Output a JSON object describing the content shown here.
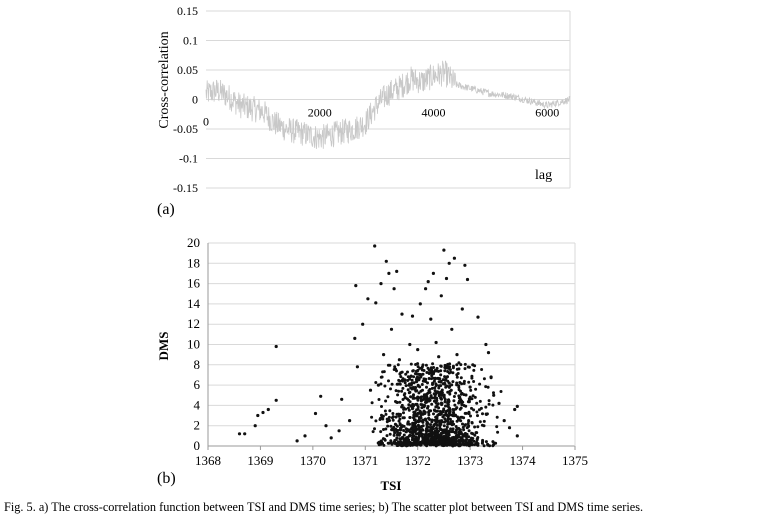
{
  "figure": {
    "caption": "Fig. 5. a) The cross-correlation function between TSI and DMS time series; b) The scatter plot between TSI and DMS time series."
  },
  "chart_data": [
    {
      "type": "line",
      "panel_label": "(a)",
      "title": "",
      "xlabel": "lag",
      "ylabel": "Cross-correlation",
      "xlim": [
        0,
        6400
      ],
      "ylim": [
        -0.15,
        0.15
      ],
      "x_ticks": [
        "0",
        "2000",
        "4000",
        "6000"
      ],
      "y_ticks": [
        "0.15",
        "0.1",
        "0.05",
        "0",
        "-0.05",
        "-0.1",
        "-0.15"
      ],
      "grid": true,
      "color": "#c8c8c8",
      "series": [
        {
          "name": "Cross-correlation",
          "x": [
            0,
            200,
            400,
            600,
            800,
            1000,
            1200,
            1400,
            1600,
            1800,
            2000,
            2200,
            2400,
            2600,
            2800,
            3000,
            3200,
            3400,
            3600,
            3800,
            4000,
            4200,
            4400,
            4600,
            4800,
            5000,
            5200,
            5400,
            5600,
            5800,
            6000,
            6200,
            6400
          ],
          "values": [
            0.01,
            0.015,
            0.005,
            -0.01,
            -0.015,
            -0.02,
            -0.04,
            -0.05,
            -0.055,
            -0.06,
            -0.065,
            -0.06,
            -0.055,
            -0.05,
            -0.04,
            -0.01,
            0.01,
            0.02,
            0.035,
            0.03,
            0.04,
            0.045,
            0.025,
            0.02,
            0.015,
            0.01,
            0.008,
            0.005,
            0.0,
            -0.005,
            -0.01,
            -0.005,
            0.0
          ]
        }
      ]
    },
    {
      "type": "scatter",
      "panel_label": "(b)",
      "title": "",
      "xlabel": "TSI",
      "ylabel": "DMS",
      "xlim": [
        1368,
        1375
      ],
      "ylim": [
        0,
        20
      ],
      "x_ticks": [
        "1368",
        "1369",
        "1370",
        "1371",
        "1372",
        "1373",
        "1374",
        "1375"
      ],
      "y_ticks": [
        "0",
        "2",
        "4",
        "6",
        "8",
        "10",
        "12",
        "14",
        "16",
        "18",
        "20"
      ],
      "grid": true,
      "color": "#111111",
      "series": [
        {
          "name": "TSI vs DMS",
          "points": [
            [
              1368.6,
              1.2
            ],
            [
              1368.7,
              1.2
            ],
            [
              1368.9,
              2.0
            ],
            [
              1368.95,
              3.0
            ],
            [
              1369.05,
              3.3
            ],
            [
              1369.15,
              3.6
            ],
            [
              1369.3,
              4.5
            ],
            [
              1369.3,
              9.8
            ],
            [
              1369.7,
              0.5
            ],
            [
              1369.85,
              1.0
            ],
            [
              1370.05,
              3.2
            ],
            [
              1370.15,
              4.9
            ],
            [
              1370.25,
              2.0
            ],
            [
              1370.35,
              0.8
            ],
            [
              1370.5,
              1.5
            ],
            [
              1370.55,
              4.6
            ],
            [
              1370.7,
              2.5
            ],
            [
              1370.8,
              10.6
            ],
            [
              1370.82,
              15.8
            ],
            [
              1370.85,
              7.8
            ],
            [
              1370.95,
              12.0
            ],
            [
              1371.05,
              14.5
            ],
            [
              1371.1,
              5.5
            ],
            [
              1371.2,
              14.1
            ],
            [
              1371.3,
              16.0
            ],
            [
              1371.35,
              9.0
            ],
            [
              1371.4,
              18.2
            ],
            [
              1371.45,
              17.0
            ],
            [
              1371.5,
              11.5
            ],
            [
              1371.55,
              15.5
            ],
            [
              1371.6,
              17.2
            ],
            [
              1371.65,
              8.5
            ],
            [
              1371.7,
              13.0
            ],
            [
              1371.75,
              6.5
            ],
            [
              1371.85,
              10.0
            ],
            [
              1371.9,
              12.8
            ],
            [
              1372.0,
              9.5
            ],
            [
              1372.05,
              14.0
            ],
            [
              1372.15,
              15.5
            ],
            [
              1372.2,
              16.2
            ],
            [
              1372.25,
              12.5
            ],
            [
              1372.3,
              17.0
            ],
            [
              1372.35,
              10.2
            ],
            [
              1372.4,
              8.8
            ],
            [
              1372.45,
              14.8
            ],
            [
              1372.5,
              19.3
            ],
            [
              1372.55,
              16.5
            ],
            [
              1372.6,
              18.0
            ],
            [
              1372.65,
              11.5
            ],
            [
              1372.7,
              18.5
            ],
            [
              1372.75,
              9.0
            ],
            [
              1372.85,
              13.5
            ],
            [
              1372.9,
              17.8
            ],
            [
              1372.95,
              16.4
            ],
            [
              1373.05,
              8.0
            ],
            [
              1373.15,
              12.7
            ],
            [
              1373.3,
              10.0
            ],
            [
              1373.35,
              9.2
            ],
            [
              1373.4,
              6.8
            ],
            [
              1373.45,
              5.0
            ],
            [
              1373.55,
              4.2
            ],
            [
              1373.65,
              2.5
            ],
            [
              1373.75,
              1.8
            ],
            [
              1373.85,
              3.6
            ],
            [
              1373.9,
              3.9
            ],
            [
              1373.9,
              1.0
            ],
            [
              1371.18,
              19.7
            ],
            [
              1372.15,
              4.3
            ],
            [
              1371.25,
              6.0
            ],
            [
              1372.6,
              6.2
            ],
            [
              1373.0,
              5.8
            ]
          ]
        }
      ],
      "cloud": {
        "x_range": [
          1370.9,
          1373.7
        ],
        "y_min": 0,
        "y_max_dense": 8,
        "count": 1300
      }
    }
  ]
}
